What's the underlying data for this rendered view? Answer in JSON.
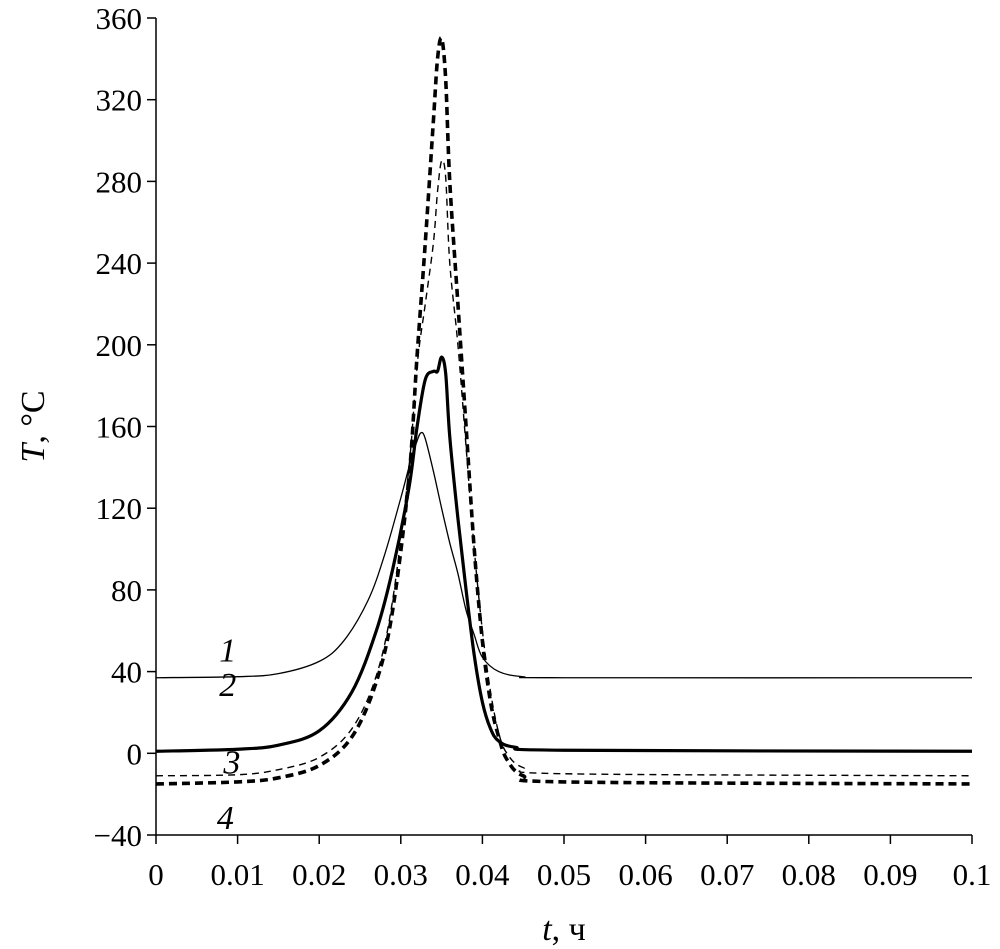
{
  "chart_data": {
    "type": "line",
    "xlabel": {
      "variable": "t",
      "unit": ", ч"
    },
    "ylabel": {
      "variable": "T",
      "unit": ", °C"
    },
    "xlim": [
      0,
      0.1
    ],
    "ylim": [
      -40,
      360
    ],
    "x_ticks": [
      "0",
      "0.01",
      "0.02",
      "0.03",
      "0.04",
      "0.05",
      "0.06",
      "0.07",
      "0.08",
      "0.09",
      "0.1"
    ],
    "y_ticks": [
      "−40",
      "0",
      "40",
      "80",
      "120",
      "160",
      "200",
      "240",
      "280",
      "320",
      "360"
    ],
    "x_tick_values": [
      0,
      0.01,
      0.02,
      0.03,
      0.04,
      0.05,
      0.06,
      0.07,
      0.08,
      0.09,
      0.1
    ],
    "y_tick_values": [
      -40,
      0,
      40,
      80,
      120,
      160,
      200,
      240,
      280,
      320,
      360
    ],
    "grid": false,
    "series": [
      {
        "name": "1",
        "style": "thin-solid",
        "color": "#000000",
        "points": [
          [
            0,
            37
          ],
          [
            0.01,
            37.5
          ],
          [
            0.015,
            39
          ],
          [
            0.02,
            45
          ],
          [
            0.023,
            55
          ],
          [
            0.026,
            75
          ],
          [
            0.028,
            97
          ],
          [
            0.03,
            125
          ],
          [
            0.031,
            140
          ],
          [
            0.032,
            153
          ],
          [
            0.0325,
            157
          ],
          [
            0.033,
            154
          ],
          [
            0.034,
            138
          ],
          [
            0.035,
            120
          ],
          [
            0.036,
            103
          ],
          [
            0.037,
            88
          ],
          [
            0.038,
            70
          ],
          [
            0.039,
            58
          ],
          [
            0.04,
            47
          ],
          [
            0.042,
            40
          ],
          [
            0.045,
            37.5
          ],
          [
            0.05,
            37
          ],
          [
            0.1,
            37
          ]
        ]
      },
      {
        "name": "2",
        "style": "thick-solid",
        "color": "#000000",
        "points": [
          [
            0,
            1
          ],
          [
            0.01,
            2
          ],
          [
            0.015,
            4
          ],
          [
            0.02,
            11
          ],
          [
            0.024,
            30
          ],
          [
            0.027,
            60
          ],
          [
            0.029,
            90
          ],
          [
            0.031,
            130
          ],
          [
            0.032,
            160
          ],
          [
            0.033,
            183
          ],
          [
            0.034,
            187
          ],
          [
            0.0345,
            187
          ],
          [
            0.035,
            194
          ],
          [
            0.0355,
            186
          ],
          [
            0.036,
            155
          ],
          [
            0.037,
            115
          ],
          [
            0.038,
            80
          ],
          [
            0.039,
            48
          ],
          [
            0.04,
            25
          ],
          [
            0.041,
            12
          ],
          [
            0.042,
            6
          ],
          [
            0.044,
            3
          ],
          [
            0.05,
            1.5
          ],
          [
            0.1,
            1
          ]
        ]
      },
      {
        "name": "3",
        "style": "thin-dashed",
        "color": "#000000",
        "points": [
          [
            0,
            -11
          ],
          [
            0.01,
            -10.5
          ],
          [
            0.015,
            -8
          ],
          [
            0.02,
            -2
          ],
          [
            0.024,
            12
          ],
          [
            0.027,
            38
          ],
          [
            0.029,
            75
          ],
          [
            0.031,
            140
          ],
          [
            0.032,
            190
          ],
          [
            0.033,
            220
          ],
          [
            0.034,
            250
          ],
          [
            0.0345,
            275
          ],
          [
            0.035,
            290
          ],
          [
            0.0355,
            282
          ],
          [
            0.036,
            240
          ],
          [
            0.037,
            200
          ],
          [
            0.038,
            150
          ],
          [
            0.039,
            100
          ],
          [
            0.04,
            60
          ],
          [
            0.041,
            30
          ],
          [
            0.042,
            10
          ],
          [
            0.043,
            0
          ],
          [
            0.045,
            -7
          ],
          [
            0.05,
            -10
          ],
          [
            0.1,
            -11
          ]
        ]
      },
      {
        "name": "4",
        "style": "thick-dashed",
        "color": "#000000",
        "points": [
          [
            0,
            -15
          ],
          [
            0.01,
            -14
          ],
          [
            0.015,
            -12
          ],
          [
            0.02,
            -6
          ],
          [
            0.024,
            8
          ],
          [
            0.027,
            35
          ],
          [
            0.029,
            70
          ],
          [
            0.031,
            135
          ],
          [
            0.032,
            195
          ],
          [
            0.033,
            250
          ],
          [
            0.034,
            310
          ],
          [
            0.0345,
            340
          ],
          [
            0.035,
            350
          ],
          [
            0.0355,
            330
          ],
          [
            0.036,
            280
          ],
          [
            0.037,
            220
          ],
          [
            0.038,
            160
          ],
          [
            0.039,
            100
          ],
          [
            0.04,
            55
          ],
          [
            0.041,
            25
          ],
          [
            0.042,
            8
          ],
          [
            0.043,
            -3
          ],
          [
            0.045,
            -11
          ],
          [
            0.05,
            -14
          ],
          [
            0.1,
            -15
          ]
        ]
      }
    ],
    "curve_labels": [
      {
        "text": "1",
        "x": 0.0088,
        "y": 45
      },
      {
        "text": "2",
        "x": 0.0088,
        "y": 28
      },
      {
        "text": "3",
        "x": 0.0093,
        "y": -10
      },
      {
        "text": "4",
        "x": 0.0085,
        "y": -37
      }
    ]
  }
}
